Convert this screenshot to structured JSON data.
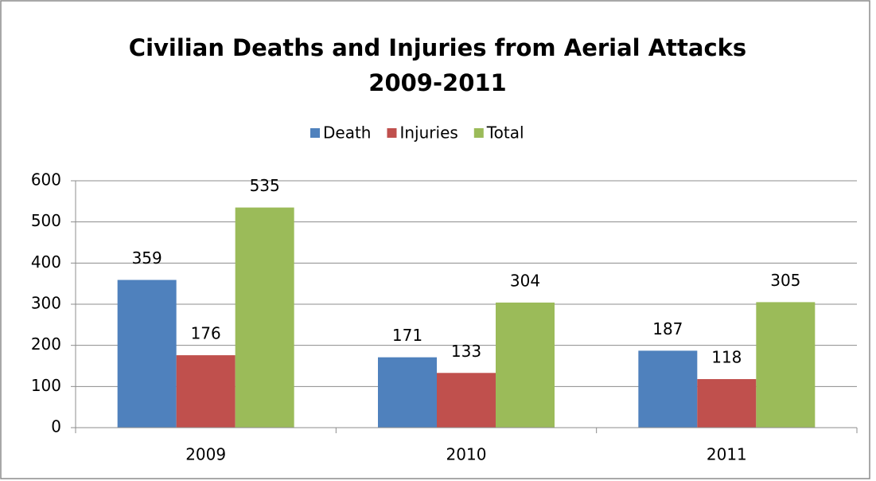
{
  "chart_data": {
    "type": "bar",
    "title": "Civilian Deaths and Injuries from Aerial Attacks",
    "subtitle": "2009-2011",
    "categories": [
      "2009",
      "2010",
      "2011"
    ],
    "series": [
      {
        "name": "Death",
        "color": "#4f81bd",
        "values": [
          359,
          171,
          187
        ]
      },
      {
        "name": "Injuries",
        "color": "#c0504d",
        "values": [
          176,
          133,
          118
        ]
      },
      {
        "name": "Total",
        "color": "#9bbb59",
        "values": [
          535,
          304,
          305
        ]
      }
    ],
    "ylim": [
      0,
      600
    ],
    "yticks": [
      0,
      100,
      200,
      300,
      400,
      500,
      600
    ],
    "grid": true,
    "legend": "top"
  }
}
